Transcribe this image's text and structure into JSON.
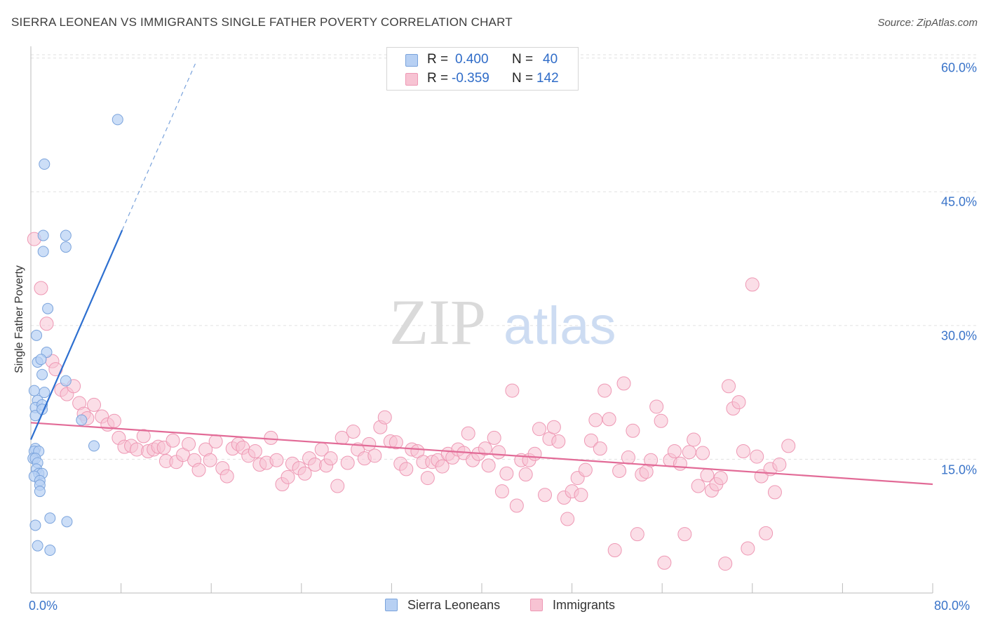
{
  "title": "SIERRA LEONEAN VS IMMIGRANTS SINGLE FATHER POVERTY CORRELATION CHART",
  "source": "Source: ZipAtlas.com",
  "watermark": {
    "zip": "ZIP",
    "atlas": "atlas"
  },
  "colors": {
    "blue_fill": "#b7d0f3",
    "blue_stroke": "#7aa3dc",
    "blue_line": "#2d6fd0",
    "pink_fill": "#f7c3d3",
    "pink_stroke": "#ee98b4",
    "pink_line": "#e26b97",
    "grid": "#e1e1e1",
    "tick_text": "#3a74c9"
  },
  "stats": {
    "blue": {
      "r_label": "R =",
      "r": "0.400",
      "n_label": "N =",
      "n": "40"
    },
    "pink": {
      "r_label": "R =",
      "r": "-0.359",
      "n_label": "N =",
      "n": "142"
    }
  },
  "chart_data": {
    "type": "scatter",
    "title": "SIERRA LEONEAN VS IMMIGRANTS SINGLE FATHER POVERTY CORRELATION CHART",
    "xlabel": "",
    "ylabel": "Single Father Poverty",
    "xlim": [
      0,
      80
    ],
    "ylim": [
      0,
      61
    ],
    "x_tick_labels": [
      "0.0%",
      "80.0%"
    ],
    "y_ticks": [
      15,
      30,
      45,
      60
    ],
    "y_tick_labels": [
      "15.0%",
      "30.0%",
      "45.0%",
      "60.0%"
    ],
    "grid": true,
    "legend": "bottom-center",
    "series": [
      {
        "name": "Sierra Leoneans",
        "color": "#7aa3dc",
        "trend": {
          "x": [
            0.0,
            8.1
          ],
          "y": [
            17.2,
            40.7
          ],
          "dashed_to": [
            14.6,
            59.4
          ]
        },
        "points": [
          [
            7.7,
            53.1
          ],
          [
            1.2,
            48.1
          ],
          [
            1.1,
            40.1
          ],
          [
            3.1,
            40.1
          ],
          [
            1.1,
            38.3
          ],
          [
            3.1,
            38.8
          ],
          [
            1.5,
            31.9
          ],
          [
            0.5,
            28.9
          ],
          [
            1.4,
            27.0
          ],
          [
            0.6,
            25.9
          ],
          [
            0.9,
            26.2
          ],
          [
            1.0,
            24.5
          ],
          [
            3.1,
            23.8
          ],
          [
            1.2,
            22.5
          ],
          [
            0.3,
            22.7
          ],
          [
            0.6,
            21.6
          ],
          [
            0.4,
            20.8
          ],
          [
            1.0,
            21.1
          ],
          [
            0.4,
            19.9
          ],
          [
            4.5,
            19.4
          ],
          [
            1.0,
            20.6
          ],
          [
            5.6,
            16.5
          ],
          [
            0.4,
            16.2
          ],
          [
            0.3,
            15.9
          ],
          [
            0.7,
            15.9
          ],
          [
            0.2,
            15.1
          ],
          [
            0.4,
            15.1
          ],
          [
            0.6,
            14.6
          ],
          [
            0.5,
            13.9
          ],
          [
            0.7,
            13.4
          ],
          [
            1.0,
            13.4
          ],
          [
            0.3,
            13.1
          ],
          [
            0.8,
            12.6
          ],
          [
            0.8,
            12.1
          ],
          [
            0.8,
            11.4
          ],
          [
            1.7,
            8.4
          ],
          [
            3.2,
            8.0
          ],
          [
            0.4,
            7.6
          ],
          [
            0.6,
            5.3
          ],
          [
            1.7,
            4.8
          ]
        ]
      },
      {
        "name": "Immigrants",
        "color": "#ee98b4",
        "trend": {
          "x": [
            0.0,
            80.0
          ],
          "y": [
            19.1,
            12.2
          ]
        },
        "points": [
          [
            0.3,
            39.7
          ],
          [
            0.9,
            34.2
          ],
          [
            1.4,
            30.2
          ],
          [
            1.9,
            26.0
          ],
          [
            2.2,
            25.1
          ],
          [
            2.7,
            22.8
          ],
          [
            3.2,
            22.3
          ],
          [
            3.8,
            23.2
          ],
          [
            4.3,
            21.3
          ],
          [
            4.7,
            20.1
          ],
          [
            5.0,
            19.6
          ],
          [
            5.6,
            21.1
          ],
          [
            6.3,
            19.8
          ],
          [
            6.8,
            18.9
          ],
          [
            7.4,
            19.3
          ],
          [
            7.8,
            17.4
          ],
          [
            8.3,
            16.4
          ],
          [
            8.9,
            16.5
          ],
          [
            9.4,
            16.1
          ],
          [
            10.0,
            17.6
          ],
          [
            10.4,
            15.9
          ],
          [
            10.9,
            16.1
          ],
          [
            11.3,
            16.4
          ],
          [
            11.8,
            16.3
          ],
          [
            12.0,
            14.8
          ],
          [
            12.6,
            17.1
          ],
          [
            12.9,
            14.7
          ],
          [
            13.5,
            15.5
          ],
          [
            14.0,
            16.7
          ],
          [
            14.5,
            14.9
          ],
          [
            14.9,
            13.8
          ],
          [
            15.5,
            16.1
          ],
          [
            15.9,
            14.9
          ],
          [
            16.4,
            17.0
          ],
          [
            17.0,
            14.0
          ],
          [
            17.4,
            13.1
          ],
          [
            17.9,
            16.2
          ],
          [
            18.4,
            16.7
          ],
          [
            18.8,
            16.3
          ],
          [
            19.3,
            15.4
          ],
          [
            19.9,
            15.9
          ],
          [
            20.3,
            14.4
          ],
          [
            20.9,
            14.6
          ],
          [
            21.3,
            17.4
          ],
          [
            21.8,
            14.9
          ],
          [
            22.3,
            12.2
          ],
          [
            22.8,
            13.0
          ],
          [
            23.2,
            14.5
          ],
          [
            23.8,
            14.0
          ],
          [
            24.3,
            13.4
          ],
          [
            24.7,
            15.1
          ],
          [
            25.2,
            14.4
          ],
          [
            25.8,
            16.1
          ],
          [
            26.2,
            14.3
          ],
          [
            26.6,
            15.1
          ],
          [
            27.2,
            12.0
          ],
          [
            27.6,
            17.4
          ],
          [
            28.1,
            14.6
          ],
          [
            28.6,
            18.1
          ],
          [
            29.0,
            16.1
          ],
          [
            29.6,
            15.1
          ],
          [
            30.0,
            16.7
          ],
          [
            30.5,
            15.4
          ],
          [
            31.0,
            18.6
          ],
          [
            31.4,
            19.7
          ],
          [
            31.9,
            17.0
          ],
          [
            32.4,
            16.9
          ],
          [
            32.8,
            14.5
          ],
          [
            33.3,
            13.9
          ],
          [
            33.8,
            16.1
          ],
          [
            34.3,
            15.9
          ],
          [
            34.8,
            14.7
          ],
          [
            35.2,
            12.9
          ],
          [
            35.6,
            14.7
          ],
          [
            36.1,
            14.9
          ],
          [
            36.5,
            14.2
          ],
          [
            37.0,
            15.6
          ],
          [
            37.4,
            15.2
          ],
          [
            37.9,
            16.1
          ],
          [
            38.4,
            15.7
          ],
          [
            38.8,
            17.9
          ],
          [
            39.2,
            14.9
          ],
          [
            39.7,
            15.6
          ],
          [
            40.3,
            16.2
          ],
          [
            40.6,
            14.3
          ],
          [
            41.1,
            17.4
          ],
          [
            41.5,
            15.8
          ],
          [
            41.8,
            11.4
          ],
          [
            42.2,
            13.4
          ],
          [
            42.7,
            22.7
          ],
          [
            43.1,
            9.8
          ],
          [
            43.5,
            14.9
          ],
          [
            43.9,
            13.3
          ],
          [
            44.2,
            14.9
          ],
          [
            44.7,
            15.6
          ],
          [
            45.1,
            18.4
          ],
          [
            45.6,
            11.0
          ],
          [
            46.0,
            17.3
          ],
          [
            46.4,
            18.6
          ],
          [
            46.8,
            17.0
          ],
          [
            47.3,
            10.7
          ],
          [
            47.6,
            8.3
          ],
          [
            48.0,
            11.4
          ],
          [
            48.5,
            12.9
          ],
          [
            48.8,
            11.0
          ],
          [
            49.2,
            13.8
          ],
          [
            49.7,
            17.1
          ],
          [
            50.1,
            19.4
          ],
          [
            50.5,
            16.2
          ],
          [
            50.9,
            22.7
          ],
          [
            51.3,
            19.5
          ],
          [
            51.8,
            4.8
          ],
          [
            52.2,
            13.7
          ],
          [
            52.6,
            23.5
          ],
          [
            53.0,
            15.2
          ],
          [
            53.4,
            18.2
          ],
          [
            53.8,
            6.6
          ],
          [
            54.2,
            13.3
          ],
          [
            54.6,
            13.6
          ],
          [
            55.0,
            14.9
          ],
          [
            55.5,
            20.9
          ],
          [
            55.9,
            19.3
          ],
          [
            56.2,
            3.4
          ],
          [
            56.7,
            14.9
          ],
          [
            57.1,
            15.9
          ],
          [
            57.6,
            14.5
          ],
          [
            58.0,
            6.6
          ],
          [
            58.4,
            15.8
          ],
          [
            58.8,
            17.2
          ],
          [
            59.2,
            12.0
          ],
          [
            59.6,
            15.7
          ],
          [
            60.0,
            13.2
          ],
          [
            60.4,
            11.5
          ],
          [
            60.8,
            12.2
          ],
          [
            61.2,
            12.9
          ],
          [
            61.6,
            3.3
          ],
          [
            61.9,
            23.2
          ],
          [
            62.3,
            20.7
          ],
          [
            62.8,
            21.4
          ],
          [
            63.2,
            15.9
          ],
          [
            63.6,
            5.0
          ],
          [
            64.0,
            34.6
          ],
          [
            64.4,
            15.3
          ],
          [
            64.8,
            13.1
          ],
          [
            65.2,
            6.7
          ],
          [
            65.6,
            13.9
          ],
          [
            66.0,
            11.3
          ],
          [
            66.4,
            14.4
          ],
          [
            67.2,
            16.5
          ]
        ]
      }
    ]
  }
}
